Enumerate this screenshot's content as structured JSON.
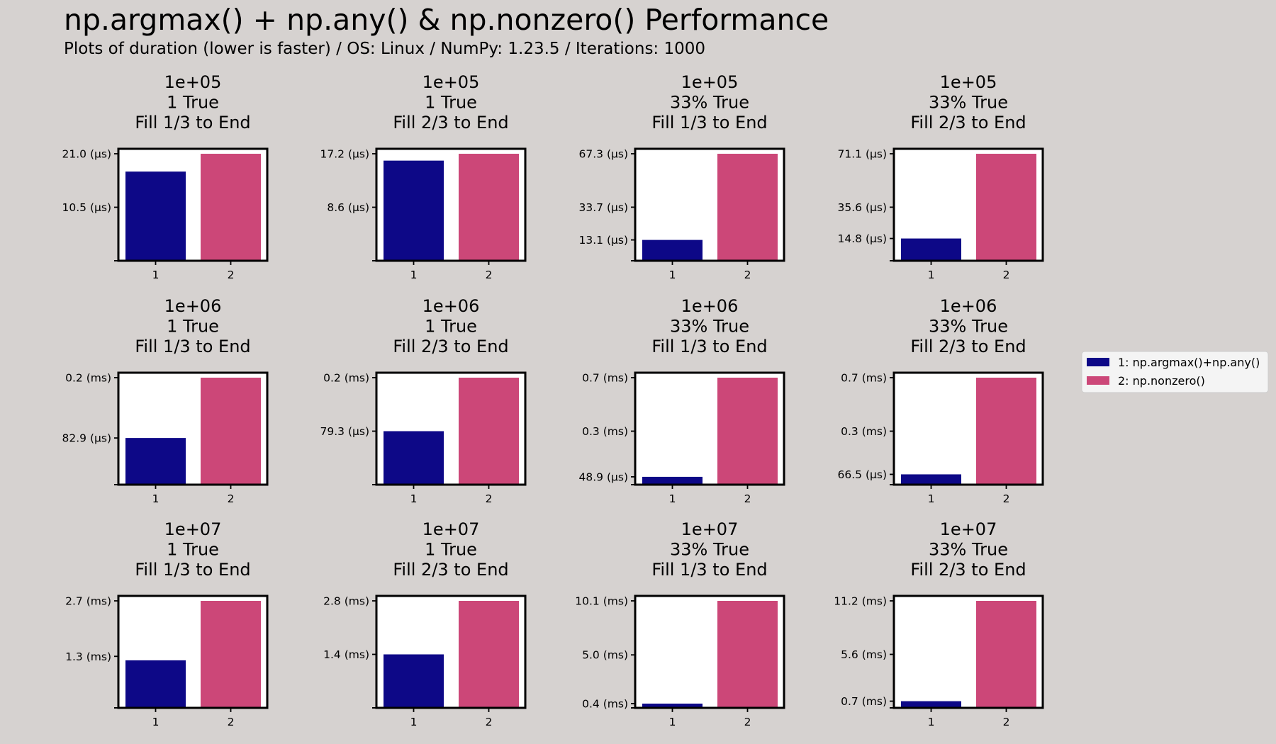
{
  "title": "np.argmax() + np.any() & np.nonzero() Performance",
  "subtitle": "Plots of duration (lower is faster) / OS: Linux / NumPy: 1.23.5 / Iterations: 1000",
  "colors": {
    "series1": "#0d0887",
    "series2": "#cc4778",
    "background": "#d6d2d0",
    "axes": "#ffffff"
  },
  "legend": {
    "placement": "right",
    "entries": [
      "1: np.argmax()+np.any()",
      "2: np.nonzero()"
    ]
  },
  "chart_data": [
    {
      "type": "bar",
      "title": [
        "1e+05",
        "1 True",
        "Fill 1/3 to End"
      ],
      "categories": [
        "1",
        "2"
      ],
      "unit": "µs",
      "values": [
        17.5,
        21.0
      ],
      "ylim": [
        0,
        21.0
      ],
      "yticks": [
        {
          "value": 10.5,
          "label": "10.5 (µs)"
        },
        {
          "value": 21.0,
          "label": "21.0 (µs)"
        }
      ]
    },
    {
      "type": "bar",
      "title": [
        "1e+05",
        "1 True",
        "Fill 2/3 to End"
      ],
      "categories": [
        "1",
        "2"
      ],
      "unit": "µs",
      "values": [
        16.1,
        17.2
      ],
      "ylim": [
        0,
        17.2
      ],
      "yticks": [
        {
          "value": 8.6,
          "label": "8.6 (µs)"
        },
        {
          "value": 17.2,
          "label": "17.2 (µs)"
        }
      ]
    },
    {
      "type": "bar",
      "title": [
        "1e+05",
        "33% True",
        "Fill 1/3 to End"
      ],
      "categories": [
        "1",
        "2"
      ],
      "unit": "µs",
      "values": [
        13.1,
        67.3
      ],
      "ylim": [
        0,
        67.3
      ],
      "yticks": [
        {
          "value": 13.1,
          "label": "13.1 (µs)"
        },
        {
          "value": 33.7,
          "label": "33.7 (µs)"
        },
        {
          "value": 67.3,
          "label": "67.3 (µs)"
        }
      ]
    },
    {
      "type": "bar",
      "title": [
        "1e+05",
        "33% True",
        "Fill 2/3 to End"
      ],
      "categories": [
        "1",
        "2"
      ],
      "unit": "µs",
      "values": [
        14.8,
        71.1
      ],
      "ylim": [
        0,
        71.1
      ],
      "yticks": [
        {
          "value": 14.8,
          "label": "14.8 (µs)"
        },
        {
          "value": 35.6,
          "label": "35.6 (µs)"
        },
        {
          "value": 71.1,
          "label": "71.1 (µs)"
        }
      ]
    },
    {
      "type": "bar",
      "title": [
        "1e+06",
        "1 True",
        "Fill 1/3 to End"
      ],
      "categories": [
        "1",
        "2"
      ],
      "unit": "µs",
      "values": [
        82.9,
        190.0
      ],
      "ylim": [
        0,
        190.0
      ],
      "yticks": [
        {
          "value": 82.9,
          "label": "82.9 (µs)"
        },
        {
          "value": 190.0,
          "label": "0.2 (ms)"
        }
      ]
    },
    {
      "type": "bar",
      "title": [
        "1e+06",
        "1 True",
        "Fill 2/3 to End"
      ],
      "categories": [
        "1",
        "2"
      ],
      "unit": "µs",
      "values": [
        79.3,
        158.6
      ],
      "ylim": [
        0,
        158.6
      ],
      "yticks": [
        {
          "value": 79.3,
          "label": "79.3 (µs)"
        },
        {
          "value": 158.6,
          "label": "0.2 (ms)"
        }
      ]
    },
    {
      "type": "bar",
      "title": [
        "1e+06",
        "33% True",
        "Fill 1/3 to End"
      ],
      "categories": [
        "1",
        "2"
      ],
      "unit": "µs",
      "values": [
        48.9,
        667.0
      ],
      "ylim": [
        0,
        667.0
      ],
      "yticks": [
        {
          "value": 48.9,
          "label": "48.9 (µs)"
        },
        {
          "value": 333.5,
          "label": "0.3 (ms)"
        },
        {
          "value": 667.0,
          "label": "0.7 (ms)"
        }
      ]
    },
    {
      "type": "bar",
      "title": [
        "1e+06",
        "33% True",
        "Fill 2/3 to End"
      ],
      "categories": [
        "1",
        "2"
      ],
      "unit": "µs",
      "values": [
        66.5,
        690.0
      ],
      "ylim": [
        0,
        690.0
      ],
      "yticks": [
        {
          "value": 66.5,
          "label": "66.5 (µs)"
        },
        {
          "value": 345.0,
          "label": "0.3 (ms)"
        },
        {
          "value": 690.0,
          "label": "0.7 (ms)"
        }
      ]
    },
    {
      "type": "bar",
      "title": [
        "1e+07",
        "1 True",
        "Fill 1/3 to End"
      ],
      "categories": [
        "1",
        "2"
      ],
      "unit": "ms",
      "values": [
        1.2,
        2.7
      ],
      "ylim": [
        0,
        2.7
      ],
      "yticks": [
        {
          "value": 1.3,
          "label": "1.3 (ms)"
        },
        {
          "value": 2.7,
          "label": "2.7 (ms)"
        }
      ]
    },
    {
      "type": "bar",
      "title": [
        "1e+07",
        "1 True",
        "Fill 2/3 to End"
      ],
      "categories": [
        "1",
        "2"
      ],
      "unit": "ms",
      "values": [
        1.4,
        2.8
      ],
      "ylim": [
        0,
        2.8
      ],
      "yticks": [
        {
          "value": 1.4,
          "label": "1.4 (ms)"
        },
        {
          "value": 2.8,
          "label": "2.8 (ms)"
        }
      ]
    },
    {
      "type": "bar",
      "title": [
        "1e+07",
        "33% True",
        "Fill 1/3 to End"
      ],
      "categories": [
        "1",
        "2"
      ],
      "unit": "ms",
      "values": [
        0.4,
        10.1
      ],
      "ylim": [
        0,
        10.1
      ],
      "yticks": [
        {
          "value": 0.4,
          "label": "0.4 (ms)"
        },
        {
          "value": 5.0,
          "label": "5.0 (ms)"
        },
        {
          "value": 10.1,
          "label": "10.1 (ms)"
        }
      ]
    },
    {
      "type": "bar",
      "title": [
        "1e+07",
        "33% True",
        "Fill 2/3 to End"
      ],
      "categories": [
        "1",
        "2"
      ],
      "unit": "ms",
      "values": [
        0.7,
        11.2
      ],
      "ylim": [
        0,
        11.2
      ],
      "yticks": [
        {
          "value": 0.7,
          "label": "0.7 (ms)"
        },
        {
          "value": 5.6,
          "label": "5.6 (ms)"
        },
        {
          "value": 11.2,
          "label": "11.2 (ms)"
        }
      ]
    }
  ]
}
